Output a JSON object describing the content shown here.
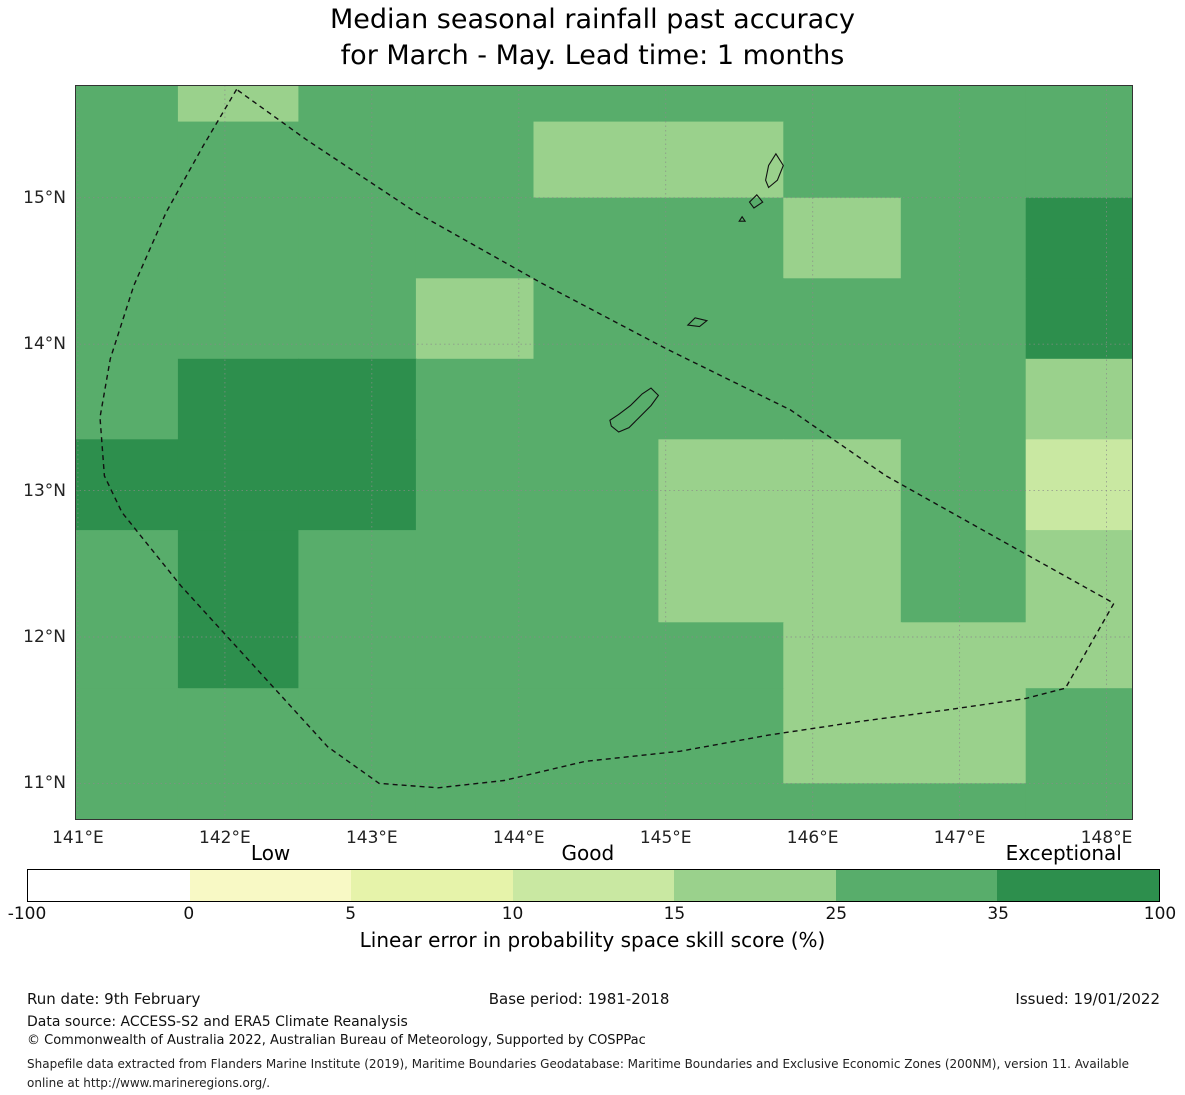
{
  "title": {
    "line1": "Median seasonal rainfall past accuracy",
    "line2": "for March - May. Lead time: 1 months"
  },
  "chart_data": {
    "type": "heatmap",
    "title": "Median seasonal rainfall past accuracy for March - May. Lead time: 1 months",
    "x_axis": {
      "ticks": [
        141,
        142,
        143,
        144,
        145,
        146,
        147,
        148
      ],
      "tick_labels": [
        "141°E",
        "142°E",
        "143°E",
        "144°E",
        "145°E",
        "146°E",
        "147°E",
        "148°E"
      ],
      "range": [
        140.98,
        148.18
      ]
    },
    "y_axis": {
      "ticks": [
        11,
        12,
        13,
        14,
        15
      ],
      "tick_labels": [
        "11°N",
        "12°N",
        "13°N",
        "14°N",
        "15°N"
      ],
      "range": [
        10.75,
        15.77
      ]
    },
    "grid": {
      "col_edges_lon": [
        140.98,
        141.68,
        142.5,
        143.3,
        144.1,
        144.95,
        145.8,
        146.6,
        147.45,
        148.18
      ],
      "row_edges_lat": [
        15.77,
        15.52,
        15.0,
        14.45,
        13.9,
        13.35,
        12.73,
        12.1,
        11.65,
        11.0,
        10.75
      ],
      "values_skill_pct": [
        [
          28,
          20,
          28,
          28,
          28,
          28,
          28,
          28,
          28
        ],
        [
          28,
          28,
          28,
          28,
          20,
          20,
          28,
          28,
          28
        ],
        [
          28,
          28,
          28,
          28,
          28,
          28,
          20,
          28,
          50
        ],
        [
          28,
          28,
          28,
          20,
          28,
          28,
          28,
          28,
          50
        ],
        [
          28,
          50,
          50,
          28,
          28,
          28,
          28,
          28,
          20
        ],
        [
          50,
          50,
          50,
          28,
          28,
          20,
          20,
          28,
          13
        ],
        [
          28,
          50,
          28,
          28,
          28,
          20,
          20,
          28,
          20
        ],
        [
          28,
          50,
          28,
          28,
          28,
          28,
          20,
          20,
          20
        ],
        [
          28,
          28,
          28,
          28,
          28,
          28,
          20,
          20,
          28
        ],
        [
          28,
          28,
          28,
          28,
          28,
          28,
          28,
          28,
          28
        ]
      ]
    },
    "colorbar": {
      "bounds": [
        -100,
        0,
        5,
        10,
        15,
        25,
        35,
        100
      ],
      "tick_labels": [
        "-100",
        "0",
        "5",
        "10",
        "15",
        "25",
        "35",
        "100"
      ],
      "colors": [
        "#ffffff",
        "#f8f9c5",
        "#e6f3aa",
        "#c9e8a2",
        "#9ad18c",
        "#58ad6b",
        "#2d8f4d"
      ],
      "categories": [
        {
          "label": "Low",
          "pos": 0.215
        },
        {
          "label": "Good",
          "pos": 0.495
        },
        {
          "label": "Exceptional",
          "pos": 0.915
        }
      ],
      "caption": "Linear error in probability space skill score (%)"
    },
    "boundary_polygon_lonlat": [
      [
        142.08,
        15.74
      ],
      [
        141.85,
        15.35
      ],
      [
        141.6,
        14.9
      ],
      [
        141.38,
        14.4
      ],
      [
        141.22,
        13.9
      ],
      [
        141.15,
        13.5
      ],
      [
        141.18,
        13.1
      ],
      [
        141.3,
        12.85
      ],
      [
        141.7,
        12.35
      ],
      [
        142.2,
        11.8
      ],
      [
        142.7,
        11.25
      ],
      [
        143.05,
        11.0
      ],
      [
        143.45,
        10.97
      ],
      [
        143.9,
        11.02
      ],
      [
        144.45,
        11.15
      ],
      [
        145.1,
        11.22
      ],
      [
        145.7,
        11.33
      ],
      [
        146.3,
        11.42
      ],
      [
        146.9,
        11.5
      ],
      [
        147.45,
        11.58
      ],
      [
        147.72,
        11.65
      ],
      [
        148.05,
        12.23
      ],
      [
        147.3,
        12.65
      ],
      [
        146.5,
        13.1
      ],
      [
        145.85,
        13.55
      ],
      [
        145.0,
        13.97
      ],
      [
        144.15,
        14.42
      ],
      [
        143.3,
        14.9
      ],
      [
        142.55,
        15.4
      ],
      [
        142.08,
        15.74
      ]
    ],
    "islands_lonlat": [
      [
        [
          144.63,
          13.44
        ],
        [
          144.68,
          13.4
        ],
        [
          144.75,
          13.43
        ],
        [
          144.82,
          13.5
        ],
        [
          144.9,
          13.58
        ],
        [
          144.95,
          13.65
        ],
        [
          144.9,
          13.7
        ],
        [
          144.84,
          13.66
        ],
        [
          144.76,
          13.58
        ],
        [
          144.68,
          13.52
        ],
        [
          144.62,
          13.48
        ]
      ],
      [
        [
          145.15,
          14.13
        ],
        [
          145.23,
          14.12
        ],
        [
          145.28,
          14.16
        ],
        [
          145.2,
          14.18
        ]
      ],
      [
        [
          145.7,
          15.07
        ],
        [
          145.76,
          15.12
        ],
        [
          145.8,
          15.22
        ],
        [
          145.75,
          15.3
        ],
        [
          145.7,
          15.22
        ],
        [
          145.68,
          15.12
        ]
      ],
      [
        [
          145.6,
          14.93
        ],
        [
          145.66,
          14.97
        ],
        [
          145.62,
          15.02
        ],
        [
          145.57,
          14.97
        ]
      ],
      [
        [
          145.5,
          14.84
        ],
        [
          145.54,
          14.84
        ],
        [
          145.52,
          14.87
        ]
      ]
    ],
    "gridlines": true
  },
  "footer": {
    "run_date": "Run date: 9th February",
    "base_period": "Base period: 1981-2018",
    "issued": "Issued: 19/01/2022",
    "data_source": "Data source: ACCESS-S2 and ERA5 Climate Reanalysis",
    "copyright": "© Commonwealth of Australia 2022, Australian Bureau of Meteorology, Supported by COSPPac",
    "shapefile_note": "Shapefile data extracted from Flanders Marine Institute (2019), Maritime Boundaries Geodatabase: Maritime Boundaries and Exclusive Economic Zones (200NM), version 11. Available online at http://www.marineregions.org/."
  }
}
